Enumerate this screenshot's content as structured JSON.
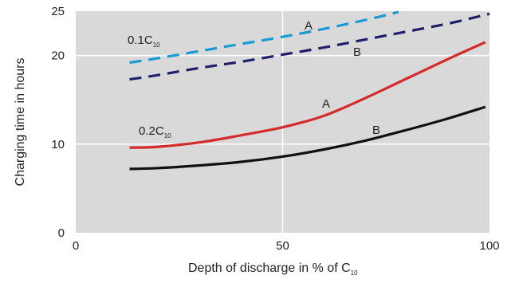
{
  "chart_data": {
    "type": "line",
    "xlabel": "Depth of discharge in % of C",
    "xlabel_subscript": "10",
    "ylabel": "Charging time in hours",
    "xlim": [
      0,
      100
    ],
    "ylim": [
      0,
      25
    ],
    "x_ticks": [
      0,
      50,
      100
    ],
    "y_ticks": [
      0,
      10,
      20,
      25
    ],
    "x_tick_labels": [
      "0",
      "50",
      "100"
    ],
    "y_tick_labels": [
      "0",
      "10",
      "20",
      "25"
    ],
    "grid": true,
    "background": "#d9d9d9",
    "series": [
      {
        "group": "0.1C10",
        "curve": "A",
        "color": "#1a9ad6",
        "dash": true,
        "points": [
          [
            13,
            19.2
          ],
          [
            20,
            19.7
          ],
          [
            30,
            20.5
          ],
          [
            40,
            21.3
          ],
          [
            50,
            22.1
          ],
          [
            60,
            23.0
          ],
          [
            70,
            24.0
          ],
          [
            78,
            24.9
          ]
        ]
      },
      {
        "group": "0.1C10",
        "curve": "B",
        "color": "#1f1f6b",
        "dash": true,
        "points": [
          [
            13,
            17.3
          ],
          [
            20,
            17.8
          ],
          [
            30,
            18.6
          ],
          [
            40,
            19.3
          ],
          [
            50,
            20.1
          ],
          [
            60,
            20.9
          ],
          [
            70,
            21.8
          ],
          [
            80,
            22.7
          ],
          [
            90,
            23.6
          ],
          [
            100,
            24.7
          ]
        ]
      },
      {
        "group": "0.2C10",
        "curve": "A",
        "color": "#d42b2b",
        "dash": false,
        "points": [
          [
            13,
            9.6
          ],
          [
            20,
            9.7
          ],
          [
            30,
            10.2
          ],
          [
            40,
            11.0
          ],
          [
            50,
            11.9
          ],
          [
            60,
            13.2
          ],
          [
            70,
            15.2
          ],
          [
            80,
            17.4
          ],
          [
            90,
            19.6
          ],
          [
            99,
            21.5
          ]
        ]
      },
      {
        "group": "0.2C10",
        "curve": "B",
        "color": "#111111",
        "dash": false,
        "points": [
          [
            13,
            7.2
          ],
          [
            20,
            7.3
          ],
          [
            30,
            7.6
          ],
          [
            40,
            8.0
          ],
          [
            50,
            8.6
          ],
          [
            60,
            9.4
          ],
          [
            70,
            10.4
          ],
          [
            80,
            11.6
          ],
          [
            90,
            12.9
          ],
          [
            99,
            14.2
          ]
        ]
      }
    ],
    "annotations": {
      "group_01": {
        "text": "0.1C",
        "sub": "10"
      },
      "group_02": {
        "text": "0.2C",
        "sub": "10"
      },
      "a1": "A",
      "b1": "B",
      "a2": "A",
      "b2": "B"
    }
  }
}
